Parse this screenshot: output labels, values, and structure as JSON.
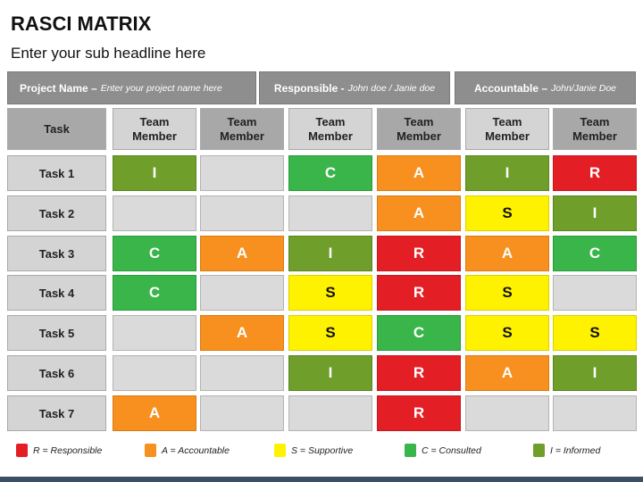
{
  "title": "RASCI MATRIX",
  "subtitle": "Enter your sub headline here",
  "info": {
    "project_label": "Project Name –",
    "project_value": "Enter your project name here",
    "responsible_label": "Responsible -",
    "responsible_value": "John doe / Janie doe",
    "accountable_label": "Accountable –",
    "accountable_value": "John/Janie Doe"
  },
  "table": {
    "task_header": "Task",
    "member_header_line1": "Team",
    "member_header_line2": "Member",
    "rows": [
      {
        "task": "Task 1",
        "cells": [
          "I",
          "",
          "C",
          "A",
          "I",
          "R"
        ]
      },
      {
        "task": "Task 2",
        "cells": [
          "",
          "",
          "",
          "A",
          "S",
          "I"
        ]
      },
      {
        "task": "Task 3",
        "cells": [
          "C",
          "A",
          "I",
          "R",
          "A",
          "C"
        ]
      },
      {
        "task": "Task 4",
        "cells": [
          "C",
          "",
          "S",
          "R",
          "S",
          ""
        ]
      },
      {
        "task": "Task 5",
        "cells": [
          "",
          "A",
          "S",
          "C",
          "S",
          "S"
        ]
      },
      {
        "task": "Task 6",
        "cells": [
          "",
          "",
          "I",
          "R",
          "A",
          "I"
        ]
      },
      {
        "task": "Task 7",
        "cells": [
          "A",
          "",
          "",
          "R",
          "",
          ""
        ]
      }
    ]
  },
  "legend": [
    {
      "code": "R",
      "text": "R = Responsible",
      "color": "#e31e24"
    },
    {
      "code": "A",
      "text": "A = Accountable",
      "color": "#f7901e"
    },
    {
      "code": "S",
      "text": "S = Supportive",
      "color": "#fff200"
    },
    {
      "code": "C",
      "text": "C = Consulted",
      "color": "#39b54a"
    },
    {
      "code": "I",
      "text": "I = Informed",
      "color": "#6f9e2b"
    }
  ],
  "colors": {
    "responsible": "#e31e24",
    "accountable": "#f7901e",
    "supportive": "#fff200",
    "consulted": "#39b54a",
    "informed": "#6f9e2b",
    "header_bar": "#8e8e8e",
    "bottom_band": "#3d4f64"
  }
}
